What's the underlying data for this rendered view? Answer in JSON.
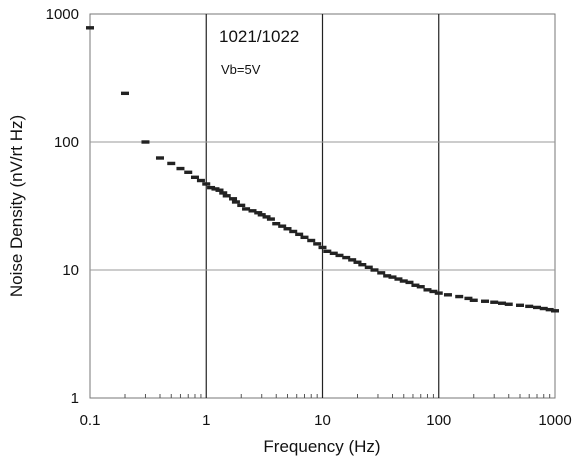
{
  "chart_data": {
    "type": "scatter",
    "title": "",
    "xlabel": "Frequency (Hz)",
    "ylabel": "Noise Density (nV/rt Hz)",
    "x_scale": "log",
    "y_scale": "log",
    "xlim": [
      0.1,
      1000
    ],
    "ylim": [
      1,
      1000
    ],
    "x_ticks": [
      {
        "value": 0.1,
        "label": "0.1"
      },
      {
        "value": 1,
        "label": "1"
      },
      {
        "value": 10,
        "label": "10"
      },
      {
        "value": 100,
        "label": "100"
      },
      {
        "value": 1000,
        "label": "1000"
      }
    ],
    "y_ticks": [
      {
        "value": 1,
        "label": "1"
      },
      {
        "value": 10,
        "label": "10"
      },
      {
        "value": 100,
        "label": "100"
      },
      {
        "value": 1000,
        "label": "1000"
      }
    ],
    "grid": true,
    "legend": "none",
    "annotations": {
      "device": "1021/1022",
      "condition": "Vb=5V"
    },
    "marker_color": "#222222",
    "series": [
      {
        "x": [
          0.1,
          0.2,
          0.3,
          0.4,
          0.5,
          0.6,
          0.7,
          0.8,
          0.9,
          1.0,
          1.1,
          1.2,
          1.3,
          1.4,
          1.5,
          1.7,
          1.8,
          2,
          2.2,
          2.5,
          2.8,
          3,
          3.3,
          3.6,
          4,
          4.5,
          5,
          5.6,
          6.3,
          7,
          8,
          9,
          10,
          11,
          12.5,
          14,
          16,
          18,
          20,
          22,
          25,
          28,
          32,
          36,
          40,
          45,
          50,
          56,
          63,
          70,
          80,
          90,
          100,
          120,
          150,
          180,
          200,
          250,
          300,
          350,
          400,
          500,
          600,
          700,
          800,
          900,
          1000
        ],
        "y": [
          780,
          240,
          100,
          75,
          68,
          62,
          58,
          53,
          50,
          47,
          44,
          43,
          42,
          40,
          38,
          36,
          34,
          32,
          30,
          29,
          28,
          27,
          26,
          25,
          23,
          22,
          21,
          20,
          19,
          18,
          17,
          16,
          15,
          14,
          13.5,
          13,
          12.5,
          12,
          11.5,
          11,
          10.5,
          10,
          9.5,
          9,
          8.8,
          8.5,
          8.2,
          8,
          7.6,
          7.4,
          7,
          6.8,
          6.6,
          6.4,
          6.2,
          6.0,
          5.8,
          5.7,
          5.6,
          5.5,
          5.4,
          5.3,
          5.2,
          5.1,
          5.0,
          4.9,
          4.8
        ]
      }
    ]
  }
}
